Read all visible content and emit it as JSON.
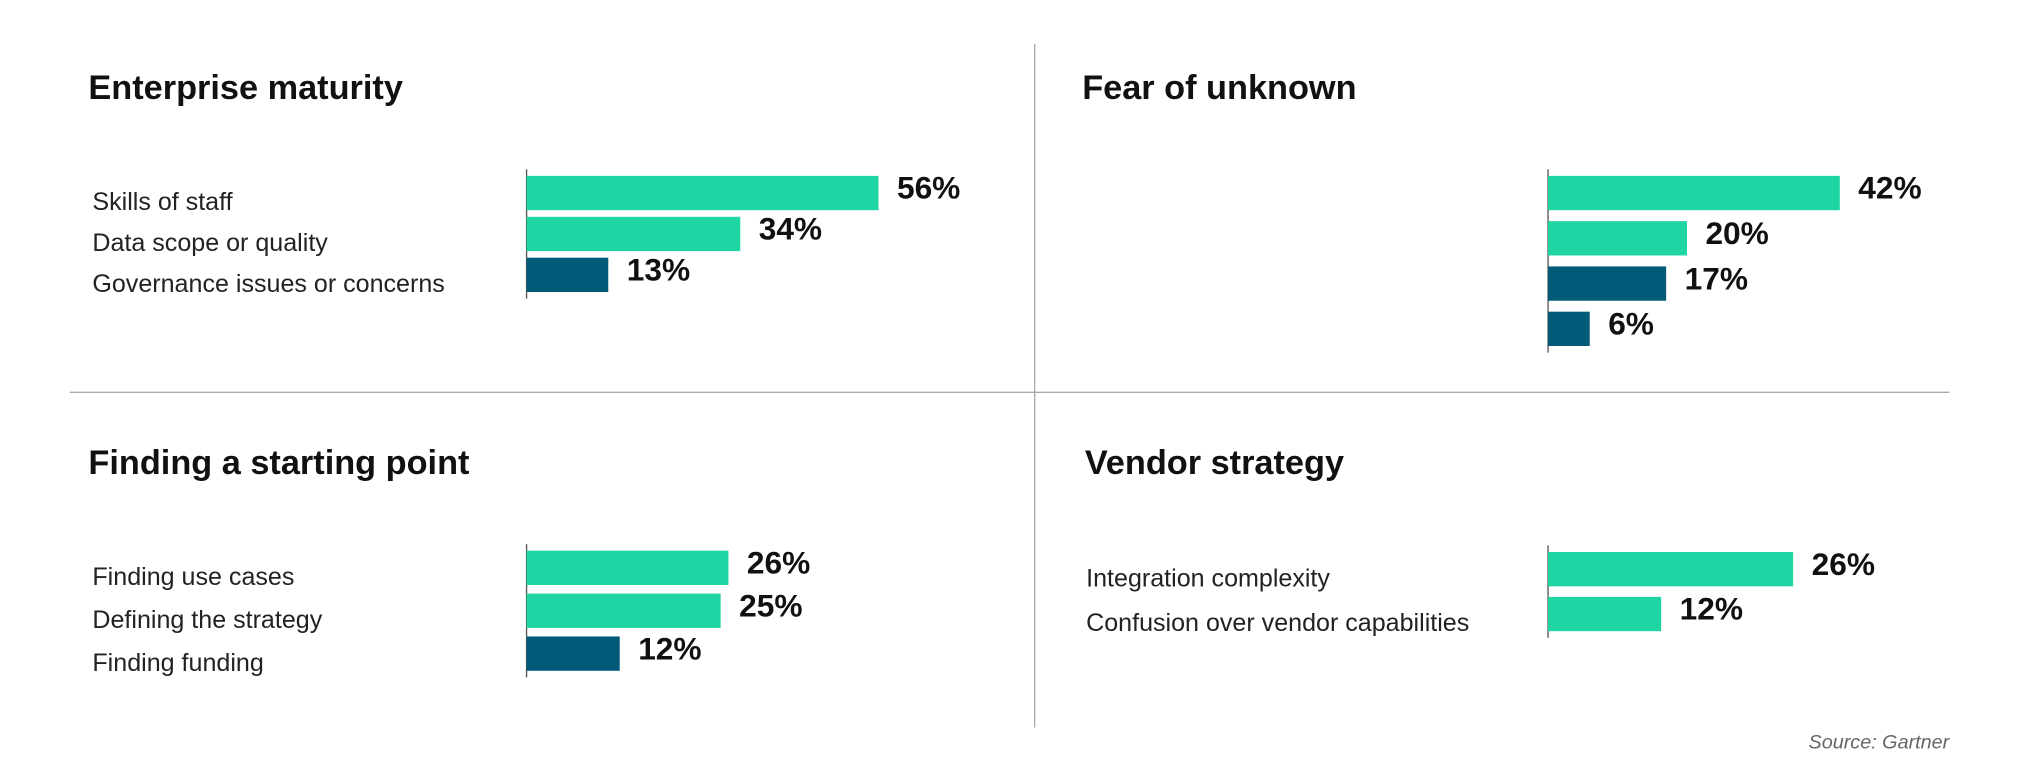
{
  "chart_data": [
    {
      "type": "bar",
      "title": "Enterprise maturity",
      "categories": [
        "Skills of staff",
        "Data scope or quality",
        "Governance issues or concerns"
      ],
      "values": [
        56,
        34,
        13
      ],
      "value_labels": [
        "56%",
        "34%",
        "13%"
      ],
      "colors": [
        "#1fd5a3",
        "#1fd5a3",
        "#005a78"
      ],
      "xlim": [
        0,
        63
      ]
    },
    {
      "type": "bar",
      "title": "Fear of unknown",
      "categories": [
        null,
        null,
        null,
        null
      ],
      "values": [
        42,
        20,
        17,
        6
      ],
      "value_labels": [
        "42%",
        "20%",
        "17%",
        "6%"
      ],
      "colors": [
        "#1fd5a3",
        "#1fd5a3",
        "#005a78",
        "#005a78"
      ],
      "xlim": [
        0,
        57
      ]
    },
    {
      "type": "bar",
      "title": "Finding a starting point",
      "categories": [
        "Finding use cases",
        "Defining the strategy",
        "Finding funding"
      ],
      "values": [
        26,
        25,
        12
      ],
      "value_labels": [
        "26%",
        "25%",
        "12%"
      ],
      "colors": [
        "#1fd5a3",
        "#1fd5a3",
        "#005a78"
      ],
      "xlim": [
        0,
        51
      ]
    },
    {
      "type": "bar",
      "title": "Vendor strategy",
      "categories": [
        "Integration complexity",
        "Confusion over vendor capabilities"
      ],
      "values": [
        26,
        12
      ],
      "value_labels": [
        "26%",
        "12%"
      ],
      "colors": [
        "#1fd5a3",
        "#1fd5a3"
      ],
      "xlim": [
        0,
        42
      ]
    }
  ],
  "source": "Source: Gartner"
}
